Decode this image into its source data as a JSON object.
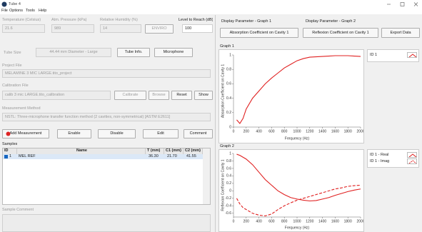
{
  "window": {
    "title": "Tube 4"
  },
  "menu": [
    "File",
    "Options",
    "Tools",
    "Help"
  ],
  "environment": {
    "temperature": {
      "label": "Temperature (Celsius)",
      "value": "21.6"
    },
    "pressure": {
      "label": "Atm. Pressure (kPa)",
      "value": "989"
    },
    "humidity": {
      "label": "Relative Humidity (%)",
      "value": "14"
    },
    "enviro_button": "ENVIRO",
    "level": {
      "label": "Level to Reach (dB)",
      "value": "100"
    }
  },
  "tube": {
    "label": "Tube Size",
    "value": "44.44 mm Diameter - Large",
    "info_button": "Tube Info.",
    "microphone_button": "Microphone"
  },
  "project": {
    "label": "Project File",
    "value": "MELAMINE 3 MIC LARGE.tito_project"
  },
  "calibration": {
    "label": "Calibration File",
    "value": "calib 3 mic LARGE.tito_calibration",
    "buttons": [
      "Calibrate",
      "Browse",
      "Reset",
      "Show"
    ]
  },
  "method": {
    "label": "Measurement Method",
    "value": "NSTL: Three-microphone transfer function method (2 cavities, non-symmetrical) [ASTM E2611]"
  },
  "actions": [
    "Add Measurement",
    "Enable",
    "Disable",
    "Edit",
    "Comment"
  ],
  "samples": {
    "label": "Samples",
    "columns": [
      "ID",
      "Name",
      "T (mm)",
      "C1 (mm)",
      "C2 (mm)"
    ],
    "rows": [
      [
        "1",
        "MEL REF",
        "36.30",
        "21.70",
        "41.55"
      ]
    ]
  },
  "comment": {
    "label": "Sample Comment"
  },
  "display": {
    "graph1_label": "Display Parameter - Graph 1",
    "graph2_label": "Display Parameter - Graph 2",
    "graph1_value": "Absorption Coefficient on Cavity 1",
    "graph2_value": "Reflexion Coefficient on Cavity 1",
    "export_button": "Export Data"
  },
  "graphs": [
    {
      "label": "Graph 1",
      "type": "line",
      "xlabel": "Frequency (Hz)",
      "ylabel": "Absorption Coefficient on Cavity 1",
      "xlim": [
        0,
        2000
      ],
      "xticks": [
        0,
        200,
        400,
        600,
        800,
        1000,
        1200,
        1400,
        1600,
        1800,
        2000
      ],
      "ylim": [
        0,
        1
      ],
      "yticks": [
        0,
        0.2,
        0.4,
        0.6,
        0.8,
        1
      ],
      "grid": false,
      "x": [
        50,
        100,
        150,
        200,
        300,
        400,
        500,
        600,
        700,
        800,
        900,
        1000,
        1100,
        1200,
        1300,
        1400,
        1500,
        1600,
        1700,
        1800,
        1900,
        2000
      ],
      "series": [
        {
          "name": "ID 1",
          "color": "#e02020",
          "style": "solid",
          "values": [
            0.1,
            0.05,
            0.12,
            0.25,
            0.4,
            0.5,
            0.6,
            0.68,
            0.75,
            0.82,
            0.87,
            0.92,
            0.95,
            0.97,
            0.975,
            0.98,
            0.985,
            0.99,
            0.99,
            0.99,
            0.985,
            0.98
          ]
        }
      ]
    },
    {
      "label": "Graph 2",
      "type": "line",
      "xlabel": "Frequency (Hz)",
      "ylabel": "Reflexion Coefficient on Cavity 1",
      "xlim": [
        0,
        2000
      ],
      "xticks": [
        0,
        200,
        400,
        600,
        800,
        1000,
        1200,
        1400,
        1600,
        1800,
        2000
      ],
      "ylim": [
        -0.7,
        1
      ],
      "yticks": [
        -0.6,
        -0.4,
        -0.2,
        0,
        0.2,
        0.4,
        0.6,
        0.8,
        1
      ],
      "grid": false,
      "x": [
        50,
        100,
        150,
        200,
        300,
        400,
        500,
        600,
        700,
        800,
        900,
        1000,
        1100,
        1200,
        1300,
        1400,
        1500,
        1600,
        1700,
        1800,
        1900,
        2000
      ],
      "series": [
        {
          "name": "ID 1 - Real",
          "color": "#e02020",
          "style": "solid",
          "values": [
            0.98,
            0.95,
            0.9,
            0.85,
            0.7,
            0.5,
            0.3,
            0.15,
            0,
            -0.1,
            -0.18,
            -0.22,
            -0.25,
            -0.27,
            -0.26,
            -0.22,
            -0.18,
            -0.12,
            -0.07,
            -0.02,
            0.02,
            0.05
          ]
        },
        {
          "name": "ID 1 - Imag",
          "color": "#e02020",
          "style": "dashed",
          "values": [
            -0.2,
            -0.35,
            -0.45,
            -0.5,
            -0.6,
            -0.65,
            -0.67,
            -0.62,
            -0.5,
            -0.4,
            -0.32,
            -0.25,
            -0.2,
            -0.15,
            -0.1,
            -0.05,
            0,
            0.05,
            0.08,
            0.12,
            0.14,
            0.15
          ]
        }
      ]
    }
  ]
}
